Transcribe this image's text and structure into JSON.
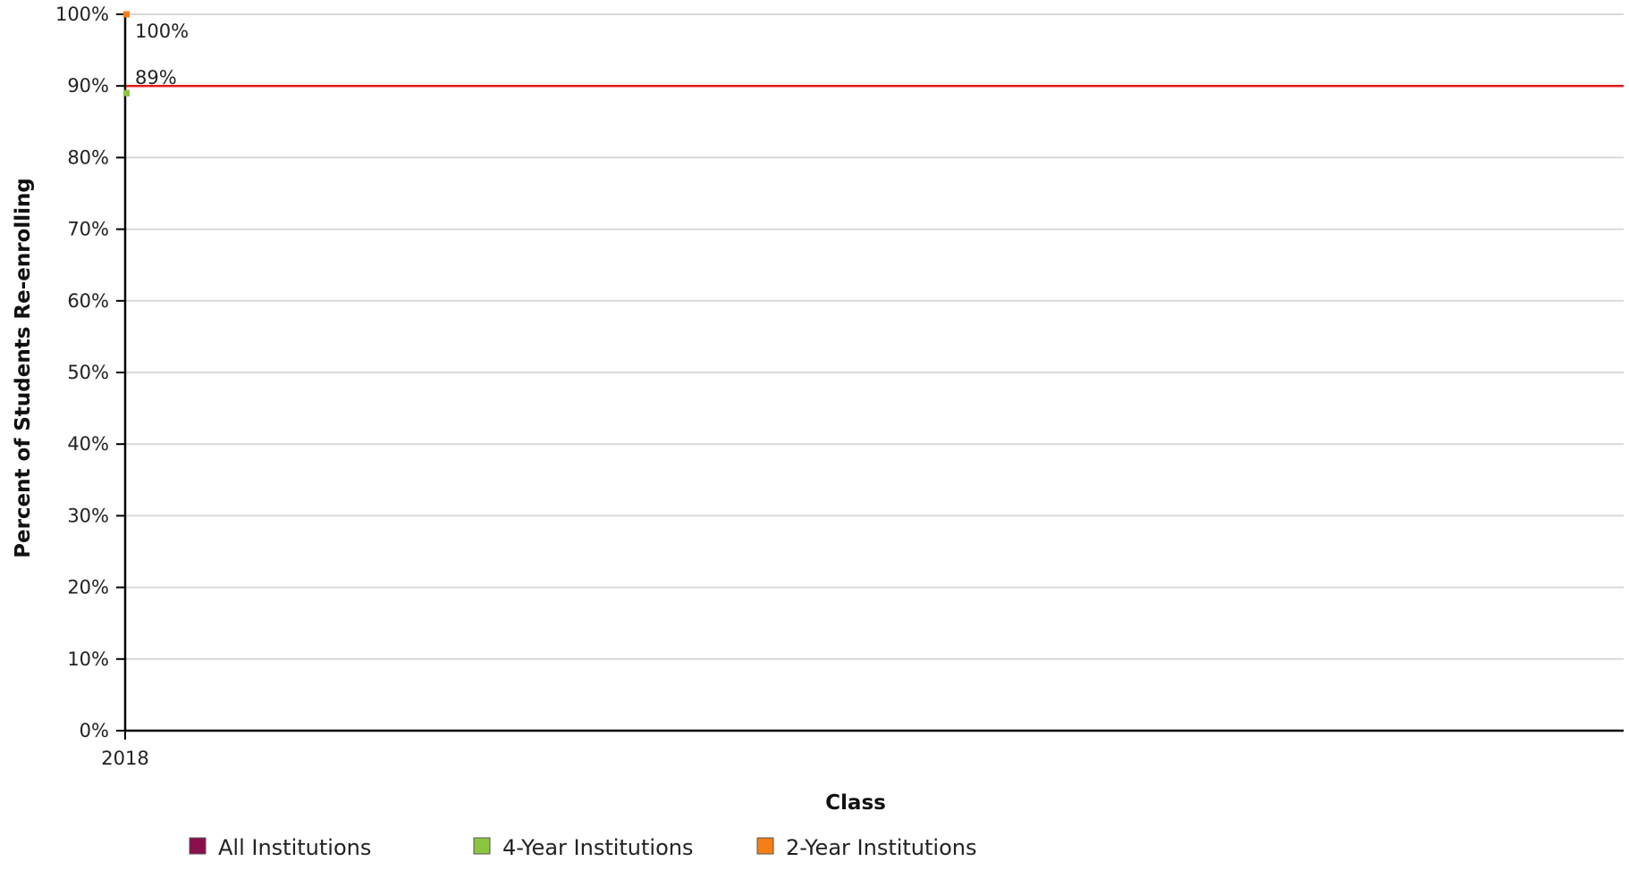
{
  "chart_data": {
    "type": "line",
    "categories": [
      "2018"
    ],
    "series": [
      {
        "name": "All Institutions",
        "color": "#8a0f4b",
        "values": [
          89
        ]
      },
      {
        "name": "4-Year Institutions",
        "color": "#8cc63f",
        "values": [
          89
        ]
      },
      {
        "name": "2-Year Institutions",
        "color": "#f57f17",
        "values": [
          100
        ]
      }
    ],
    "data_labels": [
      {
        "series": "2-Year Institutions",
        "text": "100%"
      },
      {
        "series": "All Institutions",
        "text": "89%"
      }
    ],
    "reference_line": {
      "value": 90,
      "color": "#e31a1c"
    },
    "xlabel": "Class",
    "ylabel": "Percent of Students Re-enrolling",
    "ylim": [
      0,
      100
    ],
    "y_ticks": [
      0,
      10,
      20,
      30,
      40,
      50,
      60,
      70,
      80,
      90,
      100
    ],
    "y_tick_suffix": "%",
    "grid": true,
    "legend_position": "bottom-left"
  }
}
